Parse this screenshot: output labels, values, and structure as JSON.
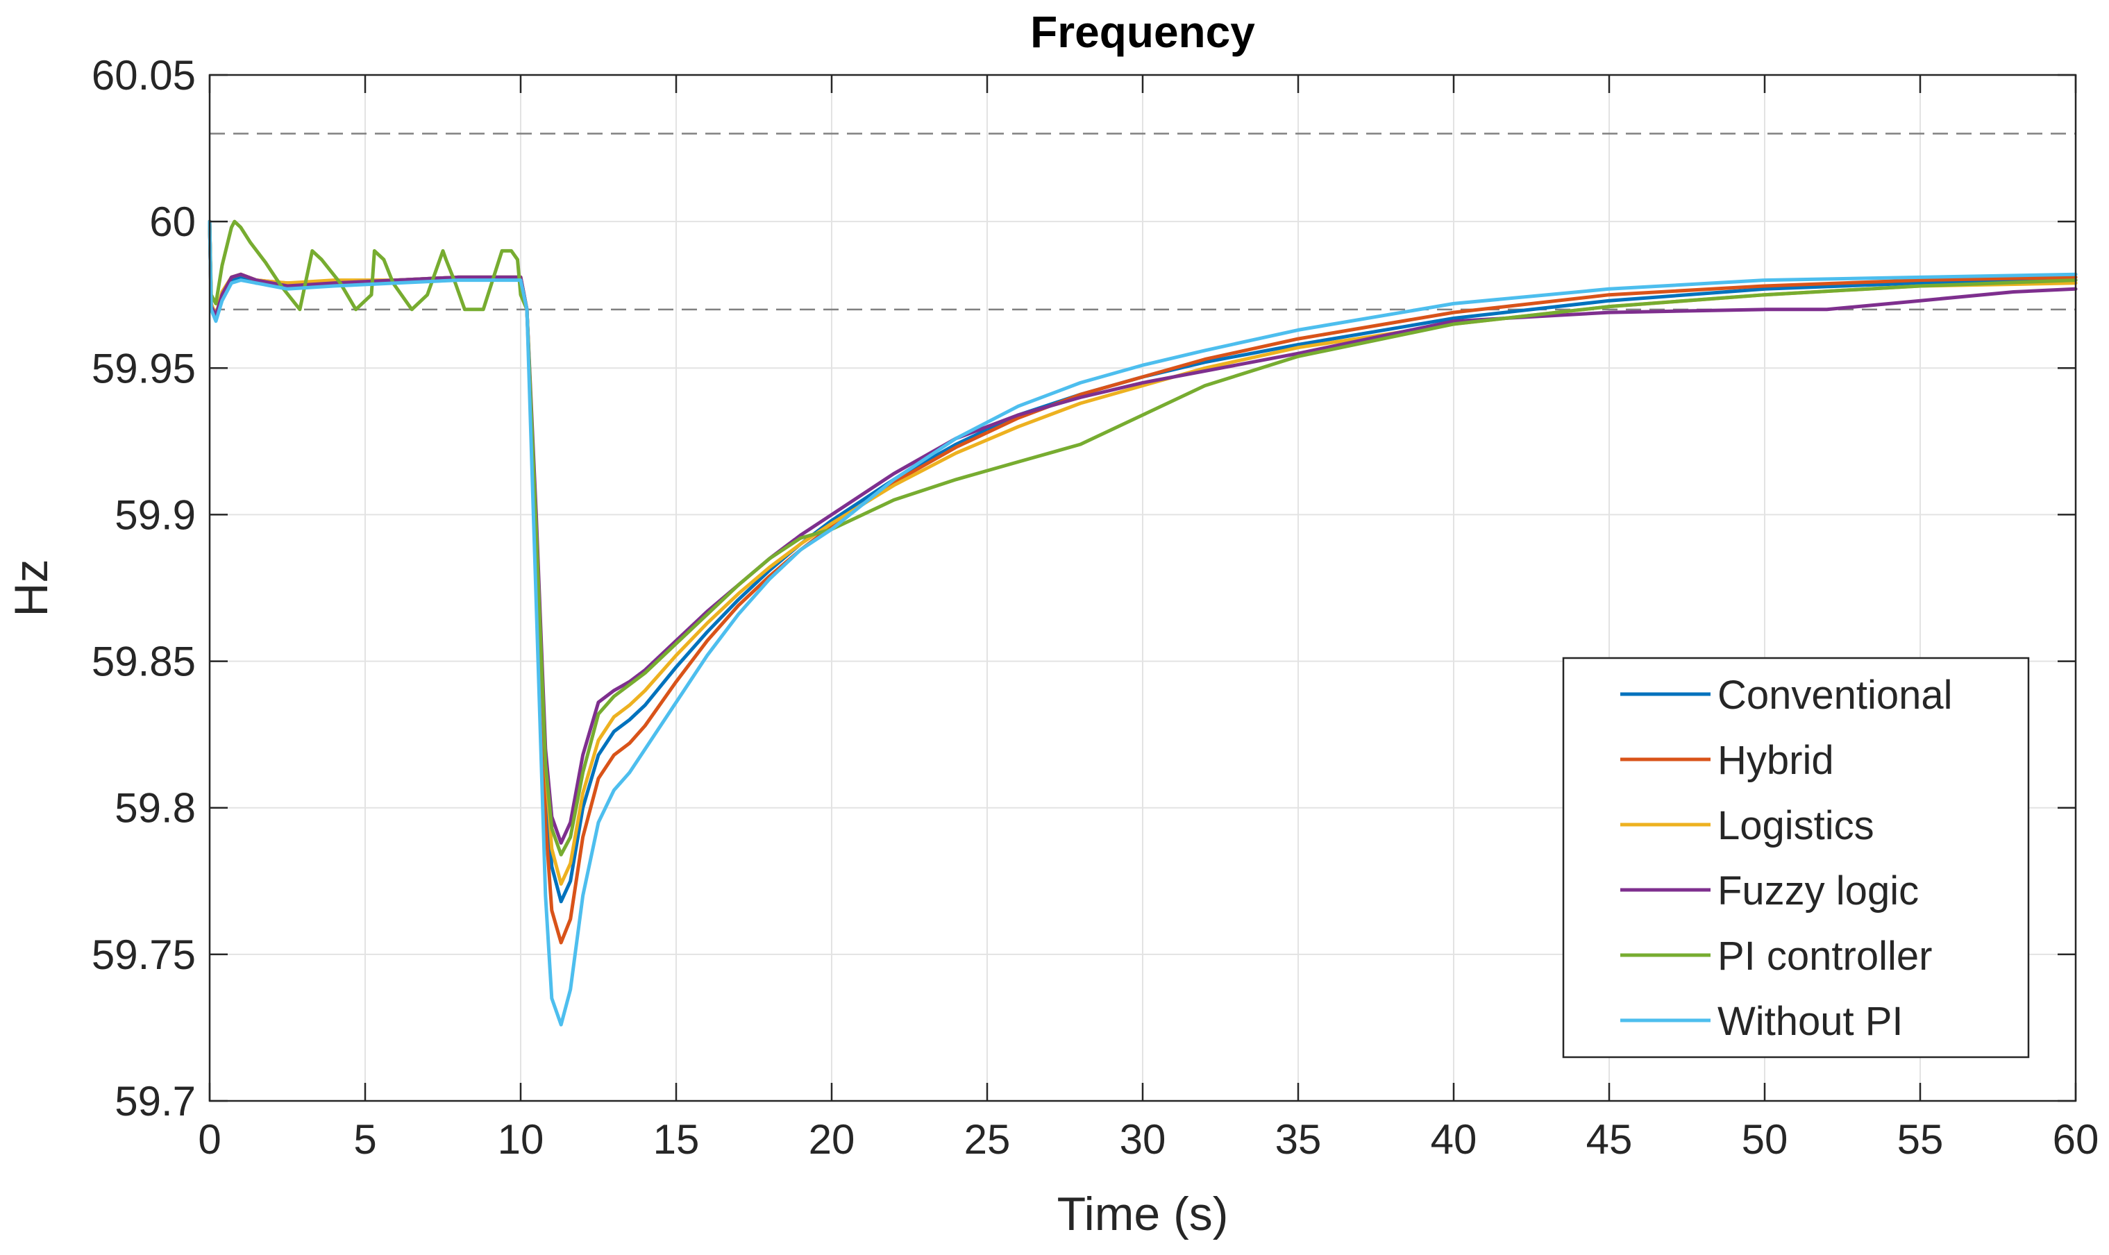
{
  "chart_data": {
    "type": "line",
    "title": "Frequency",
    "xlabel": "Time (s)",
    "ylabel": "Hz",
    "xlim": [
      0,
      60
    ],
    "ylim": [
      59.7,
      60.05
    ],
    "xticks": [
      0,
      5,
      10,
      15,
      20,
      25,
      30,
      35,
      40,
      45,
      50,
      55,
      60
    ],
    "yticks": [
      59.7,
      59.75,
      59.8,
      59.85,
      59.9,
      59.95,
      60,
      60.05
    ],
    "xtick_labels": [
      "0",
      "5",
      "10",
      "15",
      "20",
      "25",
      "30",
      "35",
      "40",
      "45",
      "50",
      "55",
      "60"
    ],
    "ytick_labels": [
      "59.7",
      "59.75",
      "59.8",
      "59.85",
      "59.9",
      "59.95",
      "60",
      "60.05"
    ],
    "grid": true,
    "legend_position": "bottom-right",
    "reference_lines": [
      {
        "y": 60.03,
        "style": "dashed",
        "color": "#808080"
      },
      {
        "y": 59.97,
        "style": "dashed",
        "color": "#808080"
      }
    ],
    "series": [
      {
        "name": "Conventional",
        "color": "#0072BD",
        "x": [
          0,
          0.05,
          0.2,
          0.4,
          0.7,
          1.0,
          1.5,
          2.5,
          4,
          6,
          8,
          10,
          10.2,
          10.5,
          10.8,
          11.0,
          11.3,
          11.6,
          12.0,
          12.5,
          13.0,
          13.5,
          14,
          15,
          16,
          17,
          18,
          19,
          20,
          22,
          24,
          26,
          28,
          30,
          32,
          35,
          40,
          45,
          50,
          55,
          60
        ],
        "y": [
          60.0,
          59.971,
          59.967,
          59.975,
          59.98,
          59.981,
          59.979,
          59.978,
          59.979,
          59.98,
          59.981,
          59.981,
          59.97,
          59.89,
          59.81,
          59.78,
          59.768,
          59.775,
          59.8,
          59.818,
          59.826,
          59.83,
          59.835,
          59.848,
          59.86,
          59.871,
          59.881,
          59.89,
          59.898,
          59.912,
          59.924,
          59.934,
          59.941,
          59.947,
          59.952,
          59.958,
          59.967,
          59.973,
          59.977,
          59.979,
          59.98
        ]
      },
      {
        "name": "Hybrid",
        "color": "#D95319",
        "x": [
          0,
          0.05,
          0.2,
          0.4,
          0.7,
          1.0,
          1.5,
          2.5,
          4,
          6,
          8,
          10,
          10.2,
          10.5,
          10.8,
          11.0,
          11.3,
          11.6,
          12.0,
          12.5,
          13.0,
          13.5,
          14,
          15,
          16,
          17,
          18,
          19,
          20,
          22,
          24,
          26,
          28,
          30,
          32,
          35,
          40,
          45,
          50,
          55,
          60
        ],
        "y": [
          60.0,
          59.971,
          59.967,
          59.975,
          59.981,
          59.982,
          59.98,
          59.979,
          59.979,
          59.98,
          59.981,
          59.981,
          59.97,
          59.885,
          59.795,
          59.765,
          59.754,
          59.762,
          59.79,
          59.81,
          59.818,
          59.822,
          59.828,
          59.843,
          59.857,
          59.869,
          59.879,
          59.888,
          59.896,
          59.911,
          59.923,
          59.933,
          59.941,
          59.947,
          59.953,
          59.96,
          59.969,
          59.975,
          59.978,
          59.98,
          59.981
        ]
      },
      {
        "name": "Logistics",
        "color": "#EDB120",
        "x": [
          0,
          0.05,
          0.2,
          0.4,
          0.7,
          1.0,
          1.5,
          2.5,
          4,
          6,
          8,
          10,
          10.2,
          10.5,
          10.8,
          11.0,
          11.3,
          11.6,
          12.0,
          12.5,
          13.0,
          13.5,
          14,
          15,
          16,
          17,
          18,
          19,
          20,
          22,
          24,
          26,
          28,
          30,
          32,
          35,
          40,
          45,
          50,
          55,
          60
        ],
        "y": [
          60.0,
          59.972,
          59.968,
          59.976,
          59.981,
          59.982,
          59.98,
          59.979,
          59.98,
          59.98,
          59.981,
          59.981,
          59.97,
          59.895,
          59.815,
          59.786,
          59.774,
          59.781,
          59.805,
          59.823,
          59.831,
          59.835,
          59.84,
          59.852,
          59.863,
          59.873,
          59.882,
          59.89,
          59.897,
          59.91,
          59.921,
          59.93,
          59.938,
          59.944,
          59.95,
          59.957,
          59.965,
          59.971,
          59.975,
          59.978,
          59.979
        ]
      },
      {
        "name": "Fuzzy logic",
        "color": "#7E2F8E",
        "x": [
          0,
          0.05,
          0.2,
          0.4,
          0.7,
          1.0,
          1.5,
          2.5,
          4,
          6,
          8,
          10,
          10.2,
          10.5,
          10.8,
          11.0,
          11.3,
          11.6,
          12.0,
          12.5,
          13.0,
          13.5,
          14,
          15,
          16,
          17,
          18,
          19,
          20,
          22,
          24,
          26,
          28,
          30,
          32,
          35,
          40,
          45,
          50,
          52,
          55,
          58,
          60
        ],
        "y": [
          60.0,
          59.971,
          59.968,
          59.975,
          59.981,
          59.982,
          59.98,
          59.978,
          59.979,
          59.98,
          59.981,
          59.981,
          59.97,
          59.9,
          59.82,
          59.797,
          59.788,
          59.795,
          59.818,
          59.836,
          59.84,
          59.843,
          59.847,
          59.857,
          59.867,
          59.876,
          59.885,
          59.893,
          59.9,
          59.914,
          59.926,
          59.934,
          59.94,
          59.945,
          59.949,
          59.955,
          59.966,
          59.969,
          59.97,
          59.97,
          59.973,
          59.976,
          59.977
        ]
      },
      {
        "name": "PI controller",
        "color": "#77AC30",
        "x": [
          0,
          0.05,
          0.2,
          0.4,
          0.7,
          0.8,
          1.0,
          1.3,
          1.8,
          2.3,
          2.9,
          3.0,
          3.3,
          3.6,
          4.2,
          4.7,
          5.2,
          5.3,
          5.6,
          5.9,
          6.5,
          7.0,
          7.5,
          7.6,
          7.9,
          8.2,
          8.8,
          9.4,
          9.7,
          9.9,
          10.0,
          10.2,
          10.5,
          10.8,
          11.0,
          11.3,
          11.6,
          12.0,
          12.5,
          13.0,
          13.5,
          14,
          15,
          16,
          17,
          18,
          19,
          20,
          22,
          24,
          26,
          28,
          30,
          32,
          35,
          40,
          45,
          50,
          55,
          60
        ],
        "y": [
          60.0,
          59.975,
          59.972,
          59.985,
          59.998,
          60.0,
          59.998,
          59.993,
          59.986,
          59.978,
          59.97,
          59.975,
          59.99,
          59.987,
          59.979,
          59.97,
          59.975,
          59.99,
          59.987,
          59.979,
          59.97,
          59.975,
          59.99,
          59.987,
          59.979,
          59.97,
          59.97,
          59.99,
          59.99,
          59.987,
          59.975,
          59.97,
          59.895,
          59.815,
          59.793,
          59.784,
          59.79,
          59.812,
          59.832,
          59.838,
          59.842,
          59.846,
          59.856,
          59.866,
          59.876,
          59.885,
          59.892,
          59.895,
          59.905,
          59.912,
          59.918,
          59.924,
          59.934,
          59.944,
          59.954,
          59.965,
          59.971,
          59.975,
          59.978,
          59.98
        ]
      },
      {
        "name": "Without PI",
        "color": "#4DBEEE",
        "x": [
          0,
          0.05,
          0.2,
          0.4,
          0.7,
          1.0,
          1.5,
          2.5,
          4,
          6,
          8,
          10,
          10.2,
          10.5,
          10.8,
          11.0,
          11.3,
          11.6,
          12.0,
          12.5,
          13.0,
          13.5,
          14,
          15,
          16,
          17,
          18,
          19,
          20,
          22,
          24,
          26,
          28,
          30,
          32,
          35,
          40,
          45,
          50,
          55,
          60
        ],
        "y": [
          60.0,
          59.97,
          59.966,
          59.973,
          59.979,
          59.98,
          59.979,
          59.977,
          59.978,
          59.979,
          59.98,
          59.98,
          59.97,
          59.87,
          59.77,
          59.735,
          59.726,
          59.738,
          59.77,
          59.795,
          59.806,
          59.812,
          59.82,
          59.836,
          59.852,
          59.866,
          59.878,
          59.888,
          59.895,
          59.912,
          59.926,
          59.937,
          59.945,
          59.951,
          59.956,
          59.963,
          59.972,
          59.977,
          59.98,
          59.981,
          59.982
        ]
      }
    ]
  }
}
